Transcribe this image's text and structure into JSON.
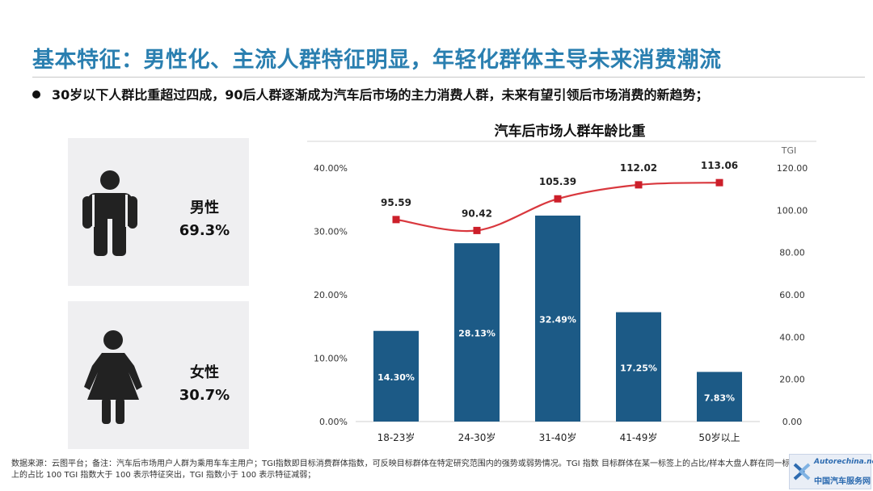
{
  "header": {
    "title": "基本特征：男性化、主流人群特征明显，年轻化群体主导未来消费潮流",
    "bullet": "30岁以下人群比重超过四成，90后人群逐渐成为汽车后市场的主力消费人群，未来有望引领后市场消费的新趋势；"
  },
  "gender": {
    "male": {
      "label": "男性",
      "value": "69.3%",
      "icon": "male-person-icon"
    },
    "female": {
      "label": "女性",
      "value": "30.7%",
      "icon": "female-person-icon"
    }
  },
  "chart_data": {
    "type": "bar",
    "title": "汽车后市场人群年龄比重",
    "categories": [
      "18-23岁",
      "24-30岁",
      "31-40岁",
      "41-49岁",
      "50岁以上"
    ],
    "series": [
      {
        "kind": "bar",
        "axis": "left",
        "values": [
          14.3,
          28.13,
          32.49,
          17.25,
          7.83
        ],
        "labels": [
          "14.30%",
          "28.13%",
          "32.49%",
          "17.25%",
          "7.83%"
        ]
      },
      {
        "name": "TGI",
        "kind": "line",
        "axis": "right",
        "values": [
          95.59,
          90.42,
          105.39,
          112.02,
          113.06
        ],
        "labels": [
          "95.59",
          "90.42",
          "105.39",
          "112.02",
          "113.06"
        ]
      }
    ],
    "left_axis": {
      "ylim": [
        0,
        40
      ],
      "ticks": [
        "0.00%",
        "10.00%",
        "20.00%",
        "30.00%",
        "40.00%"
      ]
    },
    "right_axis": {
      "label": "TGI",
      "ylim": [
        0,
        120
      ],
      "ticks": [
        "0.00",
        "20.00",
        "40.00",
        "60.00",
        "80.00",
        "100.00",
        "120.00"
      ]
    },
    "grid": false,
    "colors": {
      "bar": "#1c5a86",
      "line": "#d9383e",
      "marker": "#cc1f2a"
    }
  },
  "footnote": "数据来源：云图平台；备注：汽车后市场用户人群为乘用车车主用户；TGI指数即目标消费群体指数，可反映目标群体在特定研究范围内的强势或弱势情况。TGI 指数 目标群体在某一标签上的占比/样本大盘人群在同一标签上的占比 100 TGI 指数大于 100 表示特征突出，TGI 指数小于 100 表示特征减弱；",
  "watermark": {
    "url": "Autorechina.net",
    "text": "中国汽车服务网"
  }
}
